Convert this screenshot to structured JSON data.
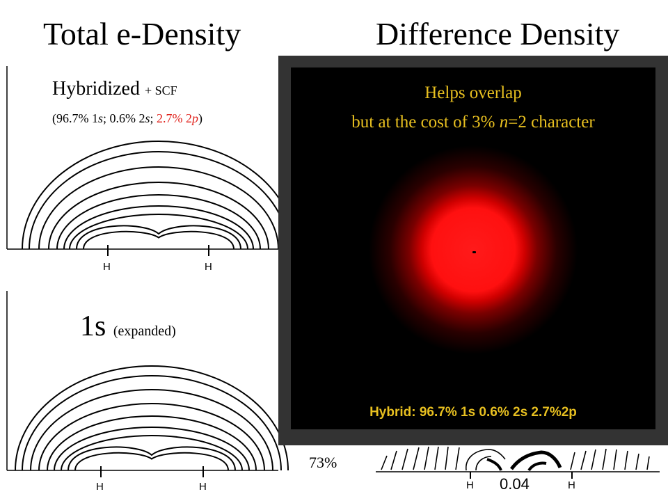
{
  "titles": {
    "left": "Total e-Density",
    "right": "Difference Density"
  },
  "top_panel": {
    "label_main": "Hybridized",
    "label_extra": "+ SCF",
    "composition_open": "(96.7% 1",
    "composition_s1": "s",
    "composition_mid1": "; 0.6% 2",
    "composition_s2": "s",
    "composition_mid2": "; ",
    "composition_red": "2.7% 2",
    "composition_p": "p",
    "composition_close": ")",
    "atom_labels": [
      "H",
      "H"
    ]
  },
  "bottom_panel": {
    "label_main": "1s",
    "label_extra": "(expanded)",
    "atom_labels": [
      "H",
      "H"
    ]
  },
  "difference_panel": {
    "percent": "73%",
    "contour_value": "0.04",
    "atom_labels": [
      "H",
      "H"
    ]
  },
  "overlay": {
    "line1": "Helps overlap",
    "line2_pre": "but at the cost of 3% ",
    "line2_n": "n",
    "line2_post": "=2 character",
    "caption": "Hybrid:  96.7% 1s   0.6% 2s   2.7%2p",
    "glow_color": "#ff1a1a",
    "text_color": "#e8c020"
  }
}
